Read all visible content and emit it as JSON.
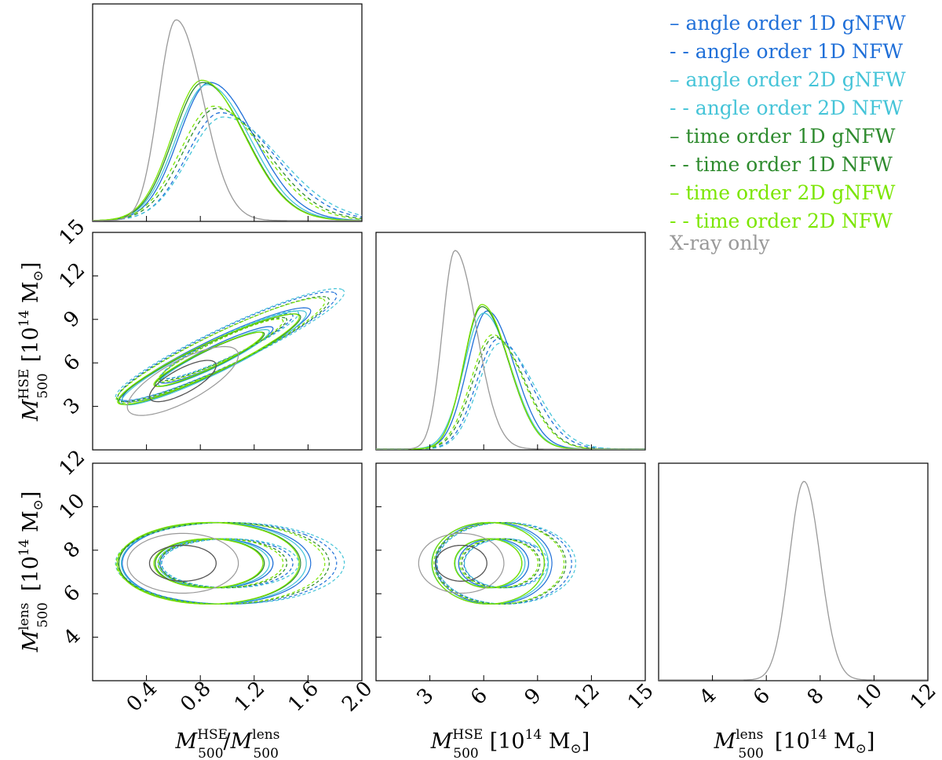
{
  "chart_data": {
    "type": "corner",
    "title": "",
    "parameters": [
      {
        "key": "ratio",
        "label": "M500HSE / M500lens",
        "range": [
          0.0,
          2.0
        ],
        "ticks": [
          0.4,
          0.8,
          1.2,
          1.6,
          2.0
        ]
      },
      {
        "key": "hse",
        "label": "M500HSE [10^14 M☉]",
        "range": [
          0,
          15
        ],
        "ticks": [
          3,
          6,
          9,
          12,
          15
        ]
      },
      {
        "key": "lens",
        "label": "M500lens [10^14 M☉]",
        "range": [
          2,
          12
        ],
        "ticks": [
          4,
          6,
          8,
          10,
          12
        ]
      }
    ],
    "series": [
      {
        "name": "angle order 1D gNFW",
        "color": "#1f6fd8",
        "dashed": false,
        "ratio_peak": 0.87,
        "ratio_width": [
          0.23,
          0.33
        ],
        "ratio_height": 0.64,
        "hse_peak": 6.2,
        "hse_width": [
          1.1,
          1.5
        ],
        "hse_height": 0.64,
        "lens_mean": 7.4,
        "lens_sd": 0.75,
        "corr_ratio_hse": 0.93
      },
      {
        "name": "angle order 1D NFW",
        "color": "#1f6fd8",
        "dashed": true,
        "ratio_peak": 0.95,
        "ratio_width": [
          0.25,
          0.4
        ],
        "ratio_height": 0.5,
        "hse_peak": 6.8,
        "hse_width": [
          1.2,
          1.8
        ],
        "hse_height": 0.51,
        "lens_mean": 7.4,
        "lens_sd": 0.75,
        "corr_ratio_hse": 0.93
      },
      {
        "name": "angle order 2D gNFW",
        "color": "#45c4d8",
        "dashed": false,
        "ratio_peak": 0.85,
        "ratio_width": [
          0.23,
          0.32
        ],
        "ratio_height": 0.63,
        "hse_peak": 6.0,
        "hse_width": [
          1.1,
          1.5
        ],
        "hse_height": 0.63,
        "lens_mean": 7.4,
        "lens_sd": 0.75,
        "corr_ratio_hse": 0.93
      },
      {
        "name": "angle order 2D NFW",
        "color": "#45c4d8",
        "dashed": true,
        "ratio_peak": 0.97,
        "ratio_width": [
          0.26,
          0.42
        ],
        "ratio_height": 0.48,
        "hse_peak": 6.9,
        "hse_width": [
          1.2,
          1.9
        ],
        "hse_height": 0.49,
        "lens_mean": 7.4,
        "lens_sd": 0.75,
        "corr_ratio_hse": 0.93
      },
      {
        "name": "time order 1D gNFW",
        "color": "#2e8b2e",
        "dashed": false,
        "ratio_peak": 0.82,
        "ratio_width": [
          0.22,
          0.32
        ],
        "ratio_height": 0.64,
        "hse_peak": 5.9,
        "hse_width": [
          1.0,
          1.5
        ],
        "hse_height": 0.66,
        "lens_mean": 7.4,
        "lens_sd": 0.75,
        "corr_ratio_hse": 0.93
      },
      {
        "name": "time order 1D NFW",
        "color": "#2e8b2e",
        "dashed": true,
        "ratio_peak": 0.92,
        "ratio_width": [
          0.25,
          0.38
        ],
        "ratio_height": 0.52,
        "hse_peak": 6.6,
        "hse_width": [
          1.2,
          1.7
        ],
        "hse_height": 0.52,
        "lens_mean": 7.4,
        "lens_sd": 0.75,
        "corr_ratio_hse": 0.93
      },
      {
        "name": "time order 2D gNFW",
        "color": "#7be600",
        "dashed": false,
        "ratio_peak": 0.81,
        "ratio_width": [
          0.22,
          0.32
        ],
        "ratio_height": 0.65,
        "hse_peak": 5.9,
        "hse_width": [
          1.0,
          1.5
        ],
        "hse_height": 0.67,
        "lens_mean": 7.4,
        "lens_sd": 0.75,
        "corr_ratio_hse": 0.93
      },
      {
        "name": "time order 2D NFW",
        "color": "#7be600",
        "dashed": true,
        "ratio_peak": 0.9,
        "ratio_width": [
          0.25,
          0.37
        ],
        "ratio_height": 0.53,
        "hse_peak": 6.5,
        "hse_width": [
          1.2,
          1.7
        ],
        "hse_height": 0.53,
        "lens_mean": 7.4,
        "lens_sd": 0.75,
        "corr_ratio_hse": 0.93
      },
      {
        "name": "X-ray only",
        "color": "#999999",
        "dashed": false,
        "ratio_peak": 0.62,
        "ratio_width": [
          0.13,
          0.2
        ],
        "ratio_height": 0.93,
        "hse_peak": 4.4,
        "hse_width": [
          0.7,
          1.2
        ],
        "hse_height": 0.92,
        "lens_mean": 7.4,
        "lens_sd": 0.55,
        "lens_height": 0.92,
        "corr_ratio_hse": 0.75
      }
    ],
    "legend_position": "top-right",
    "grid": false
  },
  "legend": {
    "items": [
      {
        "prefix": "–",
        "label": "angle order 1D gNFW",
        "color": "#1f6fd8"
      },
      {
        "prefix": "- -",
        "label": "angle order 1D NFW",
        "color": "#1f6fd8"
      },
      {
        "prefix": "–",
        "label": "angle order 2D gNFW",
        "color": "#45c4d8"
      },
      {
        "prefix": "- -",
        "label": "angle order 2D NFW",
        "color": "#45c4d8"
      },
      {
        "prefix": "–",
        "label": "time order 1D gNFW",
        "color": "#2e8b2e"
      },
      {
        "prefix": "- -",
        "label": "time order 1D NFW",
        "color": "#2e8b2e"
      },
      {
        "prefix": "–",
        "label": "time order 2D gNFW",
        "color": "#7be600"
      },
      {
        "prefix": "- -",
        "label": "time order 2D NFW",
        "color": "#7be600"
      },
      {
        "prefix": "",
        "label": "X-ray only",
        "color": "#999999"
      }
    ]
  },
  "axis_labels": {
    "x_ratio": {
      "m": "M",
      "sup1": "HSE",
      "sub1": "500",
      "slash": "/",
      "m2": "M",
      "sup2": "lens",
      "sub2": "500"
    },
    "x_hse": {
      "m": "M",
      "sup": "HSE",
      "sub": "500",
      "unit": "[10",
      "exp": "14",
      "unit2": " M",
      "sun": "⊙",
      "close": "]"
    },
    "x_lens": {
      "m": "M",
      "sup": "lens",
      "sub": "500",
      "unit": "[10",
      "exp": "14",
      "unit2": " M",
      "sun": "⊙",
      "close": "]"
    },
    "y_hse": {
      "m": "M",
      "sup": "HSE",
      "sub": "500",
      "unit": "[10",
      "exp": "14",
      "unit2": " M",
      "sun": "⊙",
      "close": "]"
    },
    "y_lens": {
      "m": "M",
      "sup": "lens",
      "sub": "500",
      "unit": "[10",
      "exp": "14",
      "unit2": " M",
      "sun": "⊙",
      "close": "]"
    }
  }
}
